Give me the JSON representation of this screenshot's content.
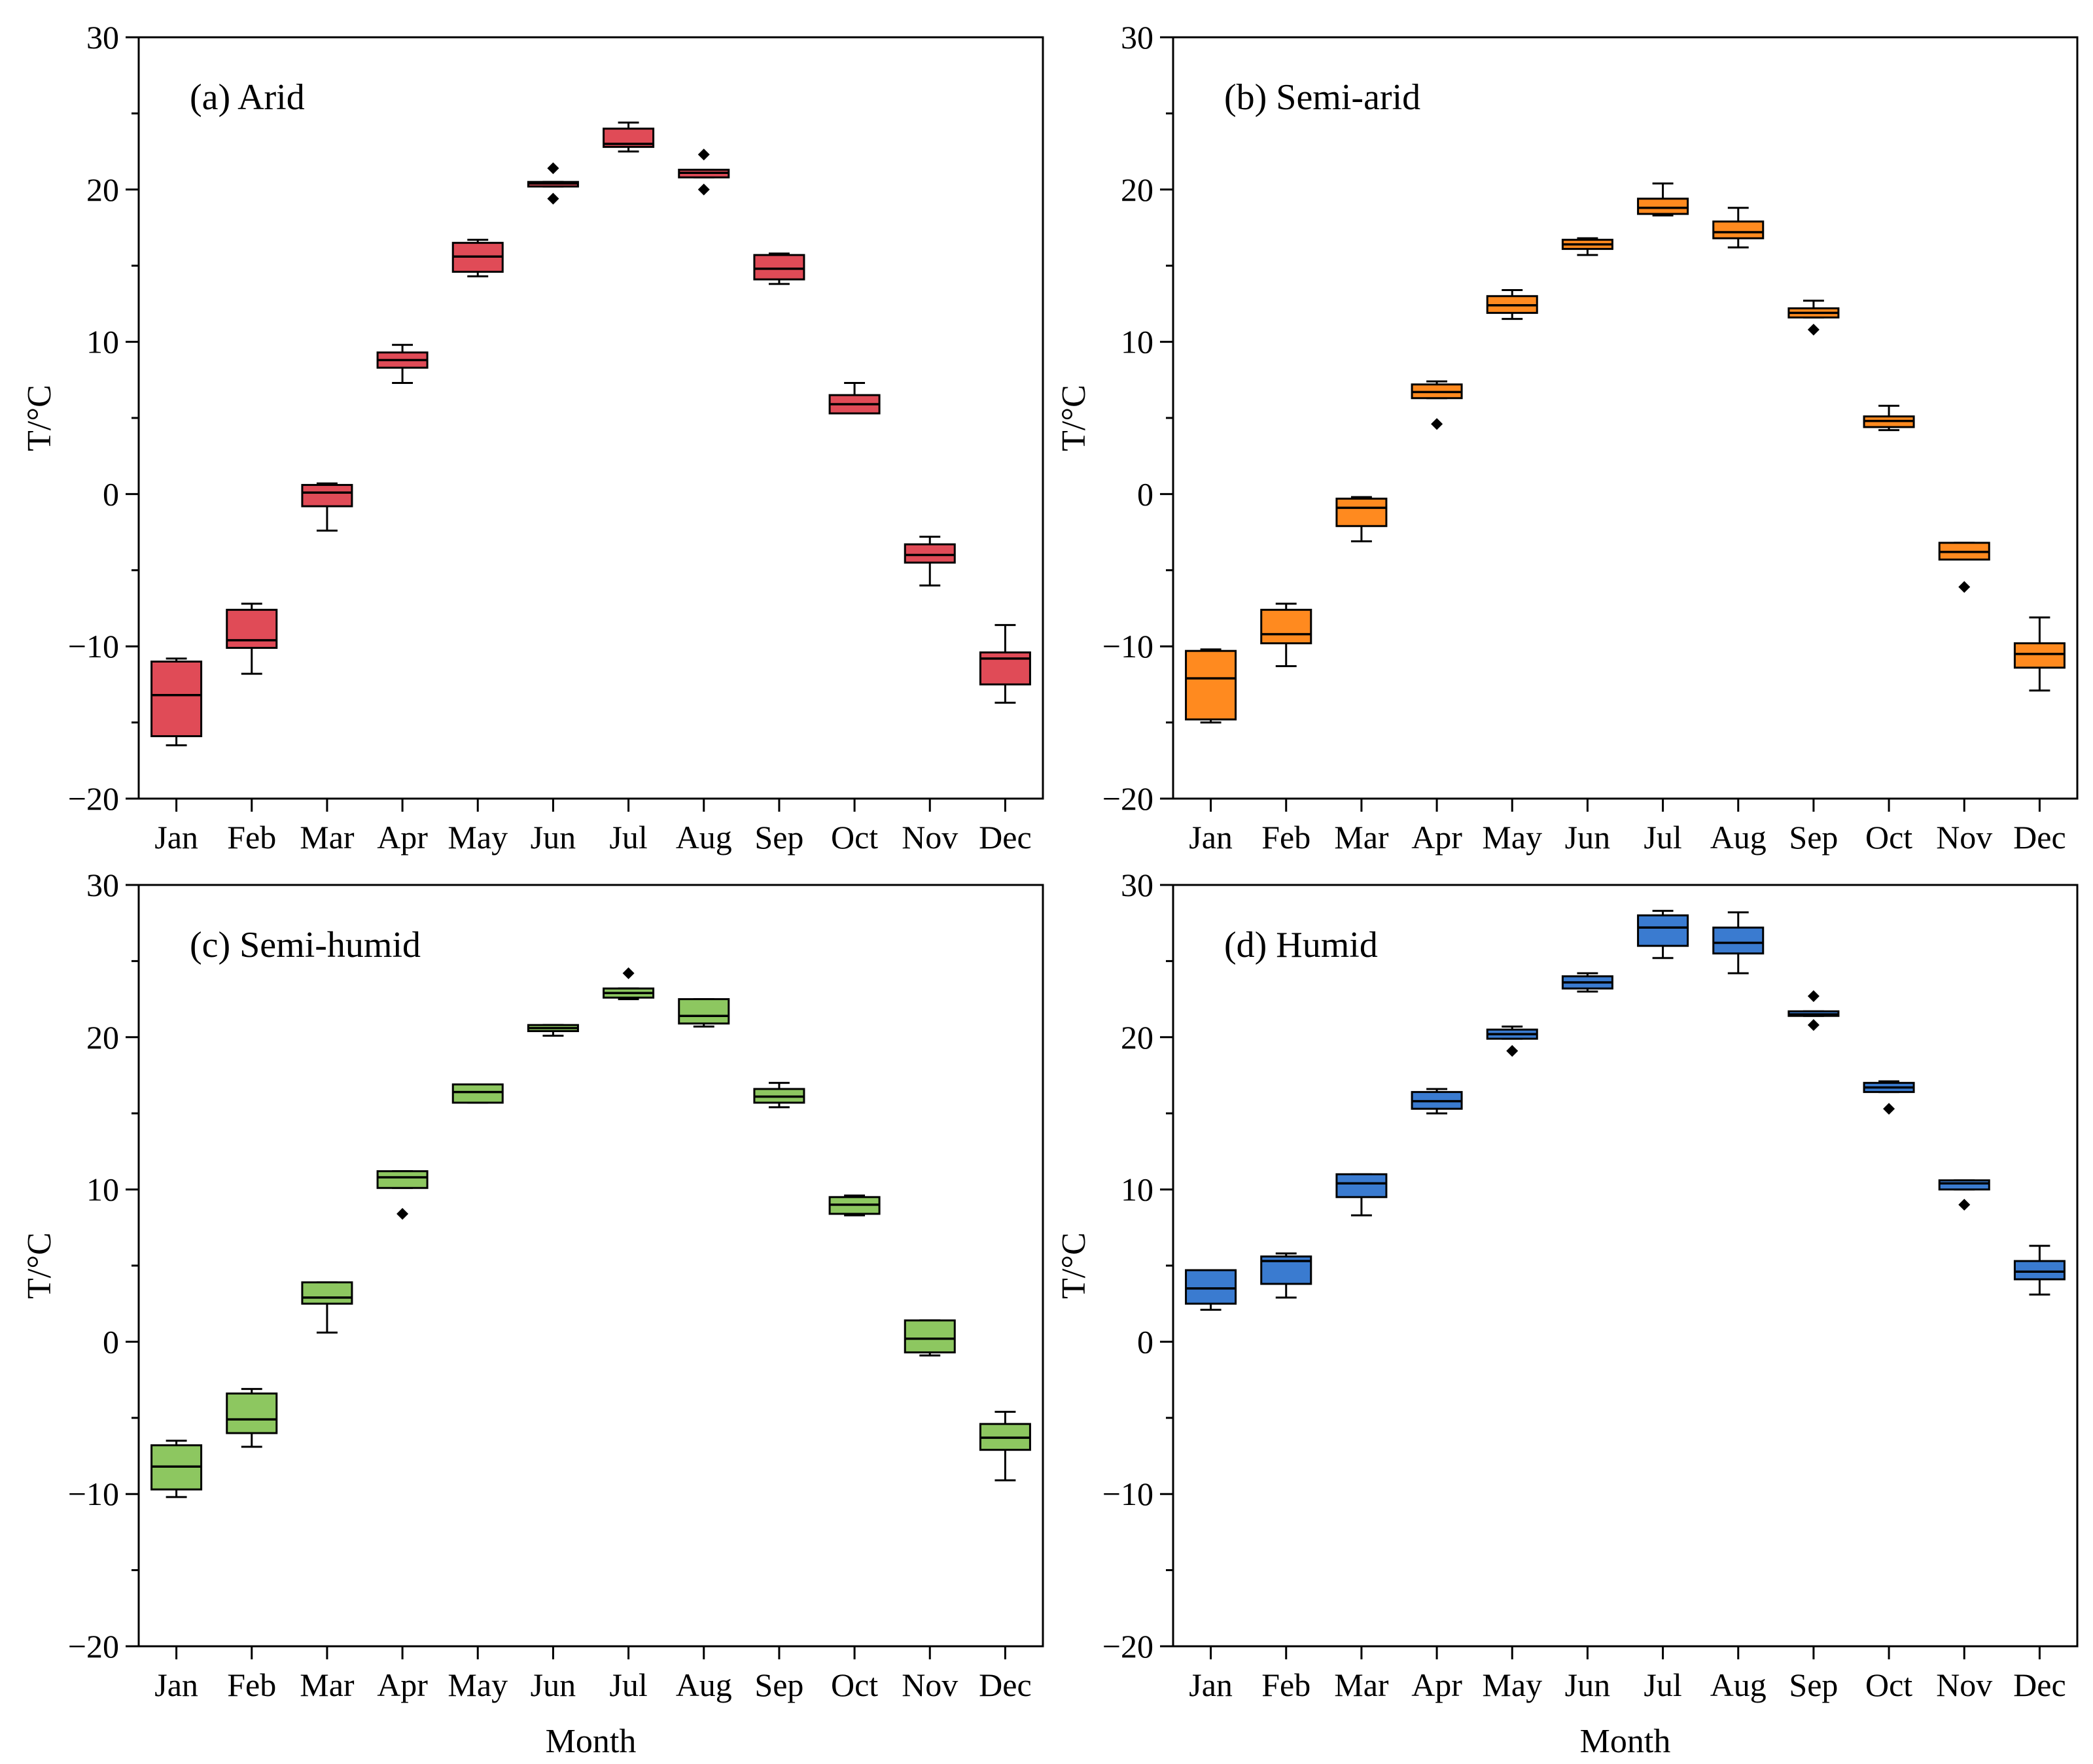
{
  "chart_data": [
    {
      "type": "box",
      "title": "(a) Arid",
      "xlabel": "",
      "ylabel": "T/°C",
      "ylim": [
        -20,
        30
      ],
      "yticks": [
        "30",
        "20",
        "10",
        "0",
        "−10",
        "−20"
      ],
      "categories": [
        "Jan",
        "Feb",
        "Mar",
        "Apr",
        "May",
        "Jun",
        "Jul",
        "Aug",
        "Sep",
        "Oct",
        "Nov",
        "Dec"
      ],
      "color": "#e04b57",
      "boxes": [
        {
          "min": -16.5,
          "q1": -15.9,
          "median": -13.2,
          "q3": -11.0,
          "max": -10.8,
          "outliers": []
        },
        {
          "min": -11.8,
          "q1": -10.1,
          "median": -9.6,
          "q3": -7.6,
          "max": -7.2,
          "outliers": []
        },
        {
          "min": -2.4,
          "q1": -0.8,
          "median": 0.1,
          "q3": 0.6,
          "max": 0.7,
          "outliers": []
        },
        {
          "min": 7.3,
          "q1": 8.3,
          "median": 8.8,
          "q3": 9.3,
          "max": 9.8,
          "outliers": []
        },
        {
          "min": 14.3,
          "q1": 14.6,
          "median": 15.6,
          "q3": 16.5,
          "max": 16.7,
          "outliers": []
        },
        {
          "min": 20.2,
          "q1": 20.2,
          "median": 20.4,
          "q3": 20.5,
          "max": 20.5,
          "outliers": [
            21.4,
            19.4
          ]
        },
        {
          "min": 22.5,
          "q1": 22.8,
          "median": 23.0,
          "q3": 24.0,
          "max": 24.4,
          "outliers": []
        },
        {
          "min": 20.8,
          "q1": 20.8,
          "median": 21.1,
          "q3": 21.3,
          "max": 21.3,
          "outliers": [
            22.3,
            20.0
          ]
        },
        {
          "min": 13.8,
          "q1": 14.1,
          "median": 14.8,
          "q3": 15.7,
          "max": 15.8,
          "outliers": []
        },
        {
          "min": 5.3,
          "q1": 5.3,
          "median": 5.9,
          "q3": 6.5,
          "max": 7.3,
          "outliers": []
        },
        {
          "min": -6.0,
          "q1": -4.5,
          "median": -4.0,
          "q3": -3.3,
          "max": -2.8,
          "outliers": []
        },
        {
          "min": -13.7,
          "q1": -12.5,
          "median": -10.8,
          "q3": -10.4,
          "max": -8.6,
          "outliers": []
        }
      ]
    },
    {
      "type": "box",
      "title": "(b) Semi-arid",
      "xlabel": "",
      "ylabel": "T/°C",
      "ylim": [
        -20,
        30
      ],
      "yticks": [
        "30",
        "20",
        "10",
        "0",
        "−10",
        "−20"
      ],
      "categories": [
        "Jan",
        "Feb",
        "Mar",
        "Apr",
        "May",
        "Jun",
        "Jul",
        "Aug",
        "Sep",
        "Oct",
        "Nov",
        "Dec"
      ],
      "color": "#ff8a1f",
      "boxes": [
        {
          "min": -15.0,
          "q1": -14.8,
          "median": -12.1,
          "q3": -10.3,
          "max": -10.2,
          "outliers": []
        },
        {
          "min": -11.3,
          "q1": -9.8,
          "median": -9.2,
          "q3": -7.6,
          "max": -7.2,
          "outliers": []
        },
        {
          "min": -3.1,
          "q1": -2.1,
          "median": -0.9,
          "q3": -0.3,
          "max": -0.2,
          "outliers": []
        },
        {
          "min": 6.3,
          "q1": 6.3,
          "median": 6.7,
          "q3": 7.2,
          "max": 7.4,
          "outliers": [
            4.6
          ]
        },
        {
          "min": 11.5,
          "q1": 11.9,
          "median": 12.4,
          "q3": 13.0,
          "max": 13.4,
          "outliers": []
        },
        {
          "min": 15.7,
          "q1": 16.1,
          "median": 16.4,
          "q3": 16.7,
          "max": 16.8,
          "outliers": []
        },
        {
          "min": 18.3,
          "q1": 18.4,
          "median": 18.8,
          "q3": 19.4,
          "max": 20.4,
          "outliers": []
        },
        {
          "min": 16.2,
          "q1": 16.8,
          "median": 17.2,
          "q3": 17.9,
          "max": 18.8,
          "outliers": []
        },
        {
          "min": 11.6,
          "q1": 11.6,
          "median": 11.9,
          "q3": 12.2,
          "max": 12.7,
          "outliers": [
            10.8
          ]
        },
        {
          "min": 4.2,
          "q1": 4.4,
          "median": 4.8,
          "q3": 5.1,
          "max": 5.8,
          "outliers": []
        },
        {
          "min": -4.3,
          "q1": -4.3,
          "median": -3.8,
          "q3": -3.2,
          "max": -3.2,
          "outliers": [
            -6.1
          ]
        },
        {
          "min": -12.9,
          "q1": -11.4,
          "median": -10.5,
          "q3": -9.8,
          "max": -8.1,
          "outliers": []
        }
      ]
    },
    {
      "type": "box",
      "title": "(c) Semi-humid",
      "xlabel": "Month",
      "ylabel": "T/°C",
      "ylim": [
        -20,
        30
      ],
      "yticks": [
        "30",
        "20",
        "10",
        "0",
        "−10",
        "−20"
      ],
      "categories": [
        "Jan",
        "Feb",
        "Mar",
        "Apr",
        "May",
        "Jun",
        "Jul",
        "Aug",
        "Sep",
        "Oct",
        "Nov",
        "Dec"
      ],
      "color": "#8dc760",
      "boxes": [
        {
          "min": -10.2,
          "q1": -9.7,
          "median": -8.2,
          "q3": -6.8,
          "max": -6.5,
          "outliers": []
        },
        {
          "min": -6.9,
          "q1": -6.0,
          "median": -5.1,
          "q3": -3.4,
          "max": -3.1,
          "outliers": []
        },
        {
          "min": 0.6,
          "q1": 2.5,
          "median": 2.9,
          "q3": 3.9,
          "max": 3.9,
          "outliers": []
        },
        {
          "min": 10.1,
          "q1": 10.1,
          "median": 10.8,
          "q3": 11.2,
          "max": 11.2,
          "outliers": [
            8.4
          ]
        },
        {
          "min": 15.7,
          "q1": 15.7,
          "median": 16.4,
          "q3": 16.9,
          "max": 16.9,
          "outliers": []
        },
        {
          "min": 20.1,
          "q1": 20.4,
          "median": 20.6,
          "q3": 20.8,
          "max": 20.8,
          "outliers": []
        },
        {
          "min": 22.5,
          "q1": 22.6,
          "median": 22.9,
          "q3": 23.2,
          "max": 23.2,
          "outliers": [
            24.2
          ]
        },
        {
          "min": 20.7,
          "q1": 20.9,
          "median": 21.4,
          "q3": 22.5,
          "max": 22.5,
          "outliers": []
        },
        {
          "min": 15.4,
          "q1": 15.7,
          "median": 16.1,
          "q3": 16.6,
          "max": 17.0,
          "outliers": []
        },
        {
          "min": 8.3,
          "q1": 8.4,
          "median": 9.0,
          "q3": 9.5,
          "max": 9.6,
          "outliers": []
        },
        {
          "min": -0.9,
          "q1": -0.7,
          "median": 0.2,
          "q3": 1.4,
          "max": 1.4,
          "outliers": []
        },
        {
          "min": -9.1,
          "q1": -7.1,
          "median": -6.3,
          "q3": -5.4,
          "max": -4.6,
          "outliers": []
        }
      ]
    },
    {
      "type": "box",
      "title": "(d) Humid",
      "xlabel": "Month",
      "ylabel": "T/°C",
      "ylim": [
        -20,
        30
      ],
      "yticks": [
        "30",
        "20",
        "10",
        "0",
        "−10",
        "−20"
      ],
      "categories": [
        "Jan",
        "Feb",
        "Mar",
        "Apr",
        "May",
        "Jun",
        "Jul",
        "Aug",
        "Sep",
        "Oct",
        "Nov",
        "Dec"
      ],
      "color": "#3a7bd0",
      "boxes": [
        {
          "min": 2.1,
          "q1": 2.5,
          "median": 3.5,
          "q3": 4.7,
          "max": 4.7,
          "outliers": []
        },
        {
          "min": 2.9,
          "q1": 3.8,
          "median": 5.3,
          "q3": 5.6,
          "max": 5.8,
          "outliers": []
        },
        {
          "min": 8.3,
          "q1": 9.5,
          "median": 10.4,
          "q3": 11.0,
          "max": 11.0,
          "outliers": []
        },
        {
          "min": 15.0,
          "q1": 15.3,
          "median": 15.8,
          "q3": 16.4,
          "max": 16.6,
          "outliers": []
        },
        {
          "min": 19.9,
          "q1": 19.9,
          "median": 20.2,
          "q3": 20.5,
          "max": 20.7,
          "outliers": [
            19.1
          ]
        },
        {
          "min": 23.0,
          "q1": 23.2,
          "median": 23.6,
          "q3": 24.0,
          "max": 24.2,
          "outliers": []
        },
        {
          "min": 25.2,
          "q1": 26.0,
          "median": 27.2,
          "q3": 28.0,
          "max": 28.3,
          "outliers": []
        },
        {
          "min": 24.2,
          "q1": 25.5,
          "median": 26.2,
          "q3": 27.2,
          "max": 28.2,
          "outliers": []
        },
        {
          "min": 21.4,
          "q1": 21.4,
          "median": 21.5,
          "q3": 21.7,
          "max": 21.7,
          "outliers": [
            22.7,
            20.8
          ]
        },
        {
          "min": 16.4,
          "q1": 16.4,
          "median": 16.7,
          "q3": 17.0,
          "max": 17.1,
          "outliers": [
            15.3
          ]
        },
        {
          "min": 10.0,
          "q1": 10.0,
          "median": 10.4,
          "q3": 10.6,
          "max": 10.6,
          "outliers": [
            9.0
          ]
        },
        {
          "min": 3.1,
          "q1": 4.1,
          "median": 4.6,
          "q3": 5.3,
          "max": 6.3,
          "outliers": []
        }
      ]
    }
  ]
}
